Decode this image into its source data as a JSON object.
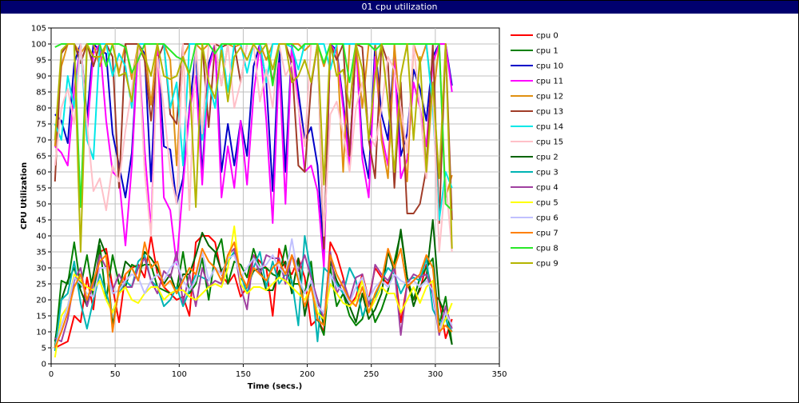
{
  "window": {
    "title": "01 cpu utilization"
  },
  "chart_data": {
    "type": "line",
    "title": "",
    "xlabel": "Time (secs.)",
    "ylabel": "CPU Utilization",
    "xlim": [
      0,
      350
    ],
    "ylim": [
      0,
      105
    ],
    "xticks": [
      0,
      50,
      100,
      150,
      200,
      250,
      300,
      350
    ],
    "yticks": [
      0,
      5,
      10,
      15,
      20,
      25,
      30,
      35,
      40,
      45,
      50,
      55,
      60,
      65,
      70,
      75,
      80,
      85,
      90,
      95,
      100,
      105
    ],
    "grid": true,
    "legend_position": "right",
    "x": [
      3,
      8,
      13,
      18,
      23,
      28,
      33,
      38,
      43,
      48,
      53,
      58,
      63,
      68,
      73,
      78,
      83,
      88,
      93,
      98,
      103,
      108,
      113,
      118,
      123,
      128,
      133,
      138,
      143,
      148,
      153,
      158,
      163,
      168,
      173,
      178,
      183,
      188,
      193,
      198,
      203,
      208,
      213,
      218,
      223,
      228,
      233,
      238,
      243,
      248,
      253,
      258,
      263,
      268,
      273,
      278,
      283,
      288,
      293,
      298,
      303,
      308,
      313
    ],
    "series": [
      {
        "name": "cpu 0",
        "color": "#ff0000",
        "values": [
          5,
          6,
          7,
          15,
          13,
          27,
          17,
          35,
          36,
          24,
          13,
          28,
          30,
          31,
          27,
          40,
          28,
          24,
          22,
          20,
          21,
          15,
          38,
          40,
          40,
          38,
          28,
          25,
          28,
          21,
          24,
          34,
          32,
          30,
          15,
          36,
          30,
          28,
          33,
          27,
          12,
          14,
          10,
          38,
          34,
          27,
          18,
          21,
          28,
          20,
          30,
          27,
          25,
          31,
          13,
          25,
          20,
          23,
          31,
          22,
          20,
          8,
          14
        ]
      },
      {
        "name": "cpu 1",
        "color": "#008000",
        "values": [
          5,
          26,
          25,
          38,
          24,
          34,
          21,
          37,
          20,
          34,
          25,
          24,
          31,
          30,
          31,
          31,
          24,
          23,
          22,
          23,
          35,
          22,
          25,
          33,
          20,
          34,
          39,
          25,
          32,
          31,
          27,
          36,
          30,
          30,
          28,
          27,
          37,
          25,
          25,
          22,
          32,
          14,
          9,
          30,
          18,
          22,
          15,
          12,
          14,
          21,
          13,
          17,
          23,
          32,
          41,
          27,
          20,
          27,
          30,
          33,
          12,
          21,
          6
        ]
      },
      {
        "name": "cpu 10",
        "color": "#0000c8",
        "values": [
          78,
          76,
          69,
          94,
          100,
          77,
          100,
          98,
          97,
          72,
          62,
          52,
          66,
          100,
          97,
          57,
          100,
          68,
          67,
          50,
          58,
          80,
          98,
          59,
          94,
          100,
          60,
          75,
          62,
          76,
          65,
          93,
          100,
          88,
          54,
          100,
          60,
          100,
          85,
          70,
          74,
          62,
          34,
          100,
          98,
          82,
          65,
          100,
          68,
          58,
          100,
          78,
          70,
          98,
          65,
          72,
          92,
          86,
          76,
          96,
          100,
          100,
          87
        ]
      },
      {
        "name": "cpu 11",
        "color": "#ff00ff",
        "values": [
          68,
          66,
          62,
          86,
          100,
          72,
          97,
          100,
          76,
          60,
          58,
          37,
          62,
          100,
          67,
          42,
          100,
          52,
          48,
          31,
          56,
          79,
          90,
          56,
          92,
          100,
          52,
          68,
          55,
          76,
          56,
          84,
          100,
          76,
          44,
          94,
          50,
          100,
          81,
          60,
          62,
          54,
          30,
          100,
          97,
          80,
          62,
          100,
          64,
          52,
          96,
          72,
          62,
          96,
          58,
          64,
          88,
          80,
          68,
          94,
          100,
          100,
          85
        ]
      },
      {
        "name": "cpu 12",
        "color": "#e09010",
        "values": [
          68,
          93,
          100,
          100,
          97,
          100,
          100,
          93,
          100,
          100,
          91,
          100,
          89,
          100,
          100,
          81,
          100,
          100,
          95,
          62,
          96,
          100,
          100,
          98,
          100,
          100,
          87,
          100,
          99,
          100,
          100,
          100,
          100,
          95,
          100,
          100,
          100,
          100,
          100,
          98,
          100,
          100,
          93,
          100,
          100,
          60,
          100,
          100,
          80,
          100,
          100,
          70,
          58,
          100,
          76,
          57,
          100,
          94,
          100,
          82,
          100,
          52,
          59
        ]
      },
      {
        "name": "cpu 13",
        "color": "#a03c28",
        "values": [
          57,
          97,
          100,
          100,
          94,
          100,
          93,
          100,
          100,
          96,
          55,
          100,
          100,
          100,
          95,
          76,
          95,
          100,
          78,
          75,
          100,
          100,
          100,
          100,
          74,
          100,
          99,
          100,
          100,
          88,
          100,
          100,
          100,
          100,
          88,
          100,
          100,
          94,
          62,
          60,
          87,
          100,
          36,
          100,
          95,
          100,
          65,
          100,
          99,
          70,
          58,
          100,
          94,
          55,
          88,
          47,
          47,
          50,
          61,
          100,
          44,
          100,
          45
        ]
      },
      {
        "name": "cpu 14",
        "color": "#00e8e8",
        "values": [
          75,
          70,
          90,
          80,
          100,
          70,
          64,
          100,
          100,
          90,
          97,
          93,
          80,
          100,
          100,
          100,
          100,
          100,
          80,
          88,
          62,
          100,
          100,
          70,
          88,
          80,
          100,
          85,
          100,
          100,
          91,
          100,
          100,
          88,
          100,
          100,
          100,
          99,
          92,
          100,
          100,
          100,
          100,
          92,
          100,
          100,
          100,
          100,
          100,
          100,
          100,
          100,
          100,
          100,
          100,
          100,
          100,
          100,
          100,
          80,
          45,
          60,
          55
        ]
      },
      {
        "name": "cpu 15",
        "color": "#ffc0c8",
        "values": [
          62,
          80,
          86,
          75,
          100,
          75,
          54,
          58,
          48,
          62,
          57,
          73,
          86,
          100,
          60,
          40,
          96,
          80,
          60,
          50,
          100,
          48,
          100,
          72,
          100,
          100,
          87,
          100,
          80,
          88,
          100,
          100,
          82,
          92,
          80,
          100,
          90,
          94,
          80,
          68,
          100,
          100,
          40,
          78,
          82,
          72,
          60,
          80,
          88,
          72,
          68,
          80,
          96,
          92,
          80,
          66,
          100,
          80,
          58,
          86,
          35,
          58,
          35
        ]
      },
      {
        "name": "cpu 2",
        "color": "#006400",
        "values": [
          7,
          20,
          26,
          30,
          23,
          18,
          28,
          39,
          34,
          12,
          23,
          32,
          30,
          26,
          35,
          33,
          30,
          25,
          28,
          22,
          28,
          28,
          34,
          41,
          37,
          35,
          29,
          32,
          35,
          27,
          24,
          29,
          30,
          23,
          23,
          29,
          32,
          22,
          33,
          15,
          26,
          20,
          12,
          32,
          26,
          22,
          18,
          13,
          22,
          14,
          17,
          22,
          35,
          29,
          42,
          27,
          18,
          24,
          27,
          45,
          20,
          15,
          6
        ]
      },
      {
        "name": "cpu 3",
        "color": "#00b4b4",
        "values": [
          4,
          20,
          22,
          32,
          19,
          11,
          20,
          28,
          22,
          16,
          22,
          26,
          24,
          32,
          34,
          26,
          24,
          18,
          20,
          24,
          18,
          23,
          28,
          27,
          26,
          30,
          28,
          32,
          35,
          28,
          22,
          30,
          35,
          24,
          32,
          25,
          28,
          26,
          12,
          40,
          28,
          7,
          30,
          28,
          25,
          22,
          30,
          26,
          15,
          19,
          21,
          26,
          30,
          28,
          22,
          26,
          27,
          26,
          33,
          17,
          13,
          14,
          10
        ]
      },
      {
        "name": "cpu 4",
        "color": "#a040a0",
        "values": [
          8,
          7,
          14,
          26,
          30,
          18,
          25,
          34,
          30,
          23,
          28,
          24,
          24,
          30,
          33,
          26,
          22,
          29,
          27,
          35,
          19,
          28,
          18,
          30,
          24,
          26,
          25,
          34,
          36,
          24,
          17,
          34,
          28,
          34,
          33,
          33,
          25,
          34,
          29,
          34,
          27,
          20,
          14,
          35,
          22,
          26,
          20,
          27,
          28,
          18,
          31,
          28,
          26,
          30,
          9,
          25,
          28,
          27,
          28,
          22,
          9,
          18,
          11
        ]
      },
      {
        "name": "cpu 5",
        "color": "#ffff00",
        "values": [
          2,
          15,
          18,
          28,
          26,
          24,
          23,
          26,
          20,
          16,
          22,
          24,
          20,
          19,
          22,
          24,
          24,
          20,
          22,
          23,
          23,
          21,
          20,
          22,
          24,
          25,
          24,
          30,
          43,
          25,
          22,
          24,
          24,
          23,
          25,
          27,
          26,
          24,
          22,
          20,
          24,
          16,
          14,
          25,
          22,
          19,
          18,
          20,
          26,
          16,
          20,
          24,
          22,
          22,
          16,
          20,
          24,
          19,
          24,
          26,
          10,
          14,
          19
        ]
      },
      {
        "name": "cpu 6",
        "color": "#c0c0ff",
        "values": [
          5,
          12,
          18,
          27,
          25,
          22,
          21,
          30,
          30,
          22,
          23,
          26,
          28,
          27,
          22,
          26,
          28,
          26,
          30,
          32,
          26,
          23,
          26,
          35,
          26,
          30,
          28,
          33,
          34,
          27,
          30,
          33,
          30,
          31,
          34,
          30,
          28,
          39,
          27,
          22,
          26,
          18,
          16,
          28,
          24,
          23,
          19,
          24,
          27,
          20,
          24,
          26,
          24,
          28,
          26,
          25,
          26,
          24,
          26,
          23,
          10,
          16,
          12
        ]
      },
      {
        "name": "cpu 7",
        "color": "#ff8000",
        "values": [
          5,
          10,
          16,
          24,
          28,
          20,
          26,
          32,
          34,
          10,
          24,
          28,
          30,
          26,
          38,
          30,
          32,
          24,
          26,
          22,
          26,
          30,
          28,
          36,
          32,
          30,
          26,
          34,
          38,
          28,
          24,
          30,
          28,
          26,
          30,
          32,
          28,
          34,
          26,
          18,
          24,
          14,
          12,
          34,
          28,
          24,
          20,
          18,
          24,
          16,
          22,
          26,
          36,
          30,
          36,
          24,
          26,
          28,
          34,
          30,
          10,
          12,
          10
        ]
      },
      {
        "name": "cpu 8",
        "color": "#28e828",
        "values": [
          99,
          100,
          100,
          100,
          49,
          100,
          100,
          100,
          93,
          100,
          100,
          99,
          91,
          95,
          100,
          100,
          100,
          100,
          98,
          96,
          95,
          91,
          100,
          100,
          100,
          97,
          100,
          100,
          100,
          100,
          100,
          100,
          100,
          100,
          87,
          100,
          100,
          100,
          98,
          100,
          100,
          100,
          94,
          100,
          100,
          100,
          88,
          100,
          100,
          100,
          98,
          100,
          100,
          100,
          100,
          100,
          100,
          100,
          100,
          100,
          100,
          50,
          48
        ]
      },
      {
        "name": "cpu 9",
        "color": "#b4b400",
        "values": [
          70,
          98,
          100,
          100,
          35,
          100,
          96,
          96,
          100,
          100,
          90,
          91,
          82,
          100,
          96,
          90,
          100,
          90,
          89,
          90,
          96,
          90,
          49,
          100,
          88,
          83,
          98,
          82,
          96,
          99,
          95,
          100,
          97,
          100,
          92,
          100,
          100,
          88,
          90,
          95,
          88,
          100,
          56,
          100,
          90,
          92,
          80,
          100,
          92,
          70,
          90,
          100,
          82,
          60,
          90,
          100,
          70,
          96,
          60,
          88,
          58,
          100,
          36
        ]
      }
    ]
  }
}
